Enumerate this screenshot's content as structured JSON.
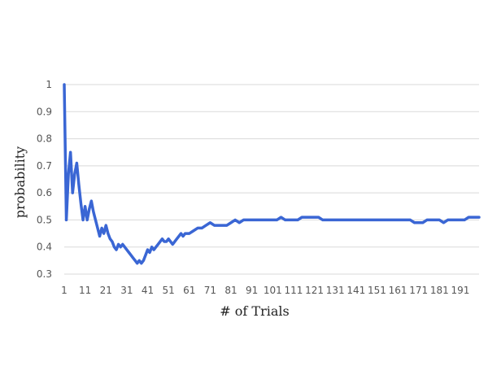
{
  "chart_data": {
    "type": "line",
    "xlabel": "# of Trials",
    "ylabel": "probability",
    "xlim": [
      1,
      200
    ],
    "ylim": [
      0.3,
      1
    ],
    "yticks": [
      "0.3",
      "0.4",
      "0.5",
      "0.6",
      "0.7",
      "0.8",
      "0.9",
      "1"
    ],
    "xticks": [
      "1",
      "11",
      "21",
      "31",
      "41",
      "51",
      "61",
      "71",
      "81",
      "91",
      "101",
      "111",
      "121",
      "131",
      "141",
      "151",
      "161",
      "171",
      "181",
      "191"
    ],
    "grid": true,
    "legend": "none",
    "color": "#3a66d4",
    "series": [
      {
        "points": [
          [
            1,
            1.0
          ],
          [
            2,
            0.5
          ],
          [
            3,
            0.67
          ],
          [
            4,
            0.75
          ],
          [
            5,
            0.6
          ],
          [
            6,
            0.67
          ],
          [
            7,
            0.71
          ],
          [
            8,
            0.63
          ],
          [
            9,
            0.56
          ],
          [
            10,
            0.5
          ],
          [
            11,
            0.55
          ],
          [
            12,
            0.5
          ],
          [
            13,
            0.54
          ],
          [
            14,
            0.57
          ],
          [
            15,
            0.53
          ],
          [
            16,
            0.5
          ],
          [
            17,
            0.47
          ],
          [
            18,
            0.44
          ],
          [
            19,
            0.47
          ],
          [
            20,
            0.45
          ],
          [
            21,
            0.48
          ],
          [
            22,
            0.45
          ],
          [
            23,
            0.43
          ],
          [
            24,
            0.42
          ],
          [
            25,
            0.4
          ],
          [
            26,
            0.39
          ],
          [
            27,
            0.41
          ],
          [
            28,
            0.4
          ],
          [
            29,
            0.41
          ],
          [
            30,
            0.4
          ],
          [
            31,
            0.39
          ],
          [
            32,
            0.38
          ],
          [
            33,
            0.37
          ],
          [
            34,
            0.36
          ],
          [
            35,
            0.35
          ],
          [
            36,
            0.34
          ],
          [
            37,
            0.35
          ],
          [
            38,
            0.34
          ],
          [
            39,
            0.35
          ],
          [
            40,
            0.37
          ],
          [
            41,
            0.39
          ],
          [
            42,
            0.38
          ],
          [
            43,
            0.4
          ],
          [
            44,
            0.39
          ],
          [
            45,
            0.4
          ],
          [
            46,
            0.41
          ],
          [
            47,
            0.42
          ],
          [
            48,
            0.43
          ],
          [
            49,
            0.42
          ],
          [
            50,
            0.42
          ],
          [
            51,
            0.43
          ],
          [
            52,
            0.42
          ],
          [
            53,
            0.41
          ],
          [
            54,
            0.42
          ],
          [
            55,
            0.43
          ],
          [
            56,
            0.44
          ],
          [
            57,
            0.45
          ],
          [
            58,
            0.44
          ],
          [
            59,
            0.45
          ],
          [
            60,
            0.45
          ],
          [
            61,
            0.45
          ],
          [
            63,
            0.46
          ],
          [
            65,
            0.47
          ],
          [
            67,
            0.47
          ],
          [
            69,
            0.48
          ],
          [
            71,
            0.49
          ],
          [
            73,
            0.48
          ],
          [
            75,
            0.48
          ],
          [
            77,
            0.48
          ],
          [
            79,
            0.48
          ],
          [
            81,
            0.49
          ],
          [
            83,
            0.5
          ],
          [
            85,
            0.49
          ],
          [
            87,
            0.5
          ],
          [
            89,
            0.5
          ],
          [
            91,
            0.5
          ],
          [
            93,
            0.5
          ],
          [
            95,
            0.5
          ],
          [
            97,
            0.5
          ],
          [
            99,
            0.5
          ],
          [
            101,
            0.5
          ],
          [
            103,
            0.5
          ],
          [
            105,
            0.51
          ],
          [
            107,
            0.5
          ],
          [
            109,
            0.5
          ],
          [
            111,
            0.5
          ],
          [
            113,
            0.5
          ],
          [
            115,
            0.51
          ],
          [
            117,
            0.51
          ],
          [
            119,
            0.51
          ],
          [
            121,
            0.51
          ],
          [
            123,
            0.51
          ],
          [
            125,
            0.5
          ],
          [
            127,
            0.5
          ],
          [
            129,
            0.5
          ],
          [
            131,
            0.5
          ],
          [
            133,
            0.5
          ],
          [
            135,
            0.5
          ],
          [
            137,
            0.5
          ],
          [
            139,
            0.5
          ],
          [
            141,
            0.5
          ],
          [
            143,
            0.5
          ],
          [
            145,
            0.5
          ],
          [
            147,
            0.5
          ],
          [
            149,
            0.5
          ],
          [
            151,
            0.5
          ],
          [
            153,
            0.5
          ],
          [
            155,
            0.5
          ],
          [
            157,
            0.5
          ],
          [
            159,
            0.5
          ],
          [
            161,
            0.5
          ],
          [
            163,
            0.5
          ],
          [
            165,
            0.5
          ],
          [
            167,
            0.5
          ],
          [
            169,
            0.49
          ],
          [
            171,
            0.49
          ],
          [
            173,
            0.49
          ],
          [
            175,
            0.5
          ],
          [
            177,
            0.5
          ],
          [
            179,
            0.5
          ],
          [
            181,
            0.5
          ],
          [
            183,
            0.49
          ],
          [
            185,
            0.5
          ],
          [
            187,
            0.5
          ],
          [
            189,
            0.5
          ],
          [
            191,
            0.5
          ],
          [
            193,
            0.5
          ],
          [
            195,
            0.51
          ],
          [
            197,
            0.51
          ],
          [
            199,
            0.51
          ],
          [
            200,
            0.51
          ]
        ]
      }
    ]
  }
}
